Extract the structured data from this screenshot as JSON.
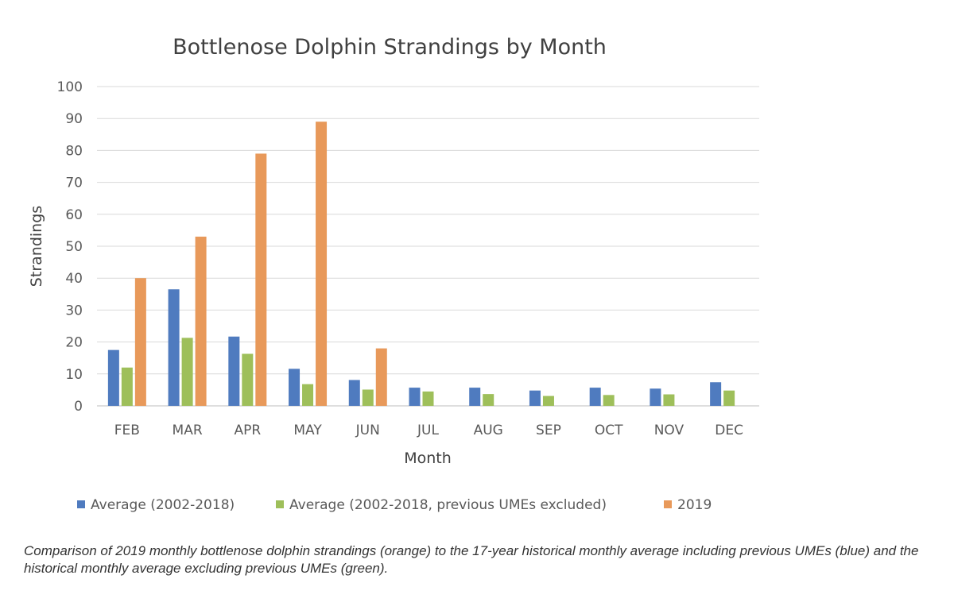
{
  "chart_data": {
    "type": "bar",
    "title": "Bottlenose Dolphin Strandings by Month",
    "xlabel": "Month",
    "ylabel": "Strandings",
    "ylim": [
      0,
      100
    ],
    "yticks": [
      0,
      10,
      20,
      30,
      40,
      50,
      60,
      70,
      80,
      90,
      100
    ],
    "grid": true,
    "legend_position": "bottom",
    "categories": [
      "FEB",
      "MAR",
      "APR",
      "MAY",
      "JUN",
      "JUL",
      "AUG",
      "SEP",
      "OCT",
      "NOV",
      "DEC"
    ],
    "series": [
      {
        "name": "Average (2002-2018)",
        "color": "#4f7bbf",
        "values": [
          17.5,
          36.5,
          21.7,
          11.6,
          8.1,
          5.7,
          5.7,
          4.8,
          5.7,
          5.4,
          7.4
        ]
      },
      {
        "name": "Average (2002-2018, previous UMEs excluded)",
        "color": "#9ebf5a",
        "values": [
          12,
          21.3,
          16.3,
          6.8,
          5.1,
          4.5,
          3.7,
          3.1,
          3.4,
          3.6,
          4.8
        ]
      },
      {
        "name": "2019",
        "color": "#e8995a",
        "values": [
          40,
          53,
          79,
          89,
          18,
          null,
          null,
          null,
          null,
          null,
          null
        ]
      }
    ]
  },
  "caption": "Comparison of 2019 monthly bottlenose dolphin strandings (orange) to the 17-year historical monthly average including previous UMEs (blue) and the historical monthly average excluding previous UMEs (green)."
}
